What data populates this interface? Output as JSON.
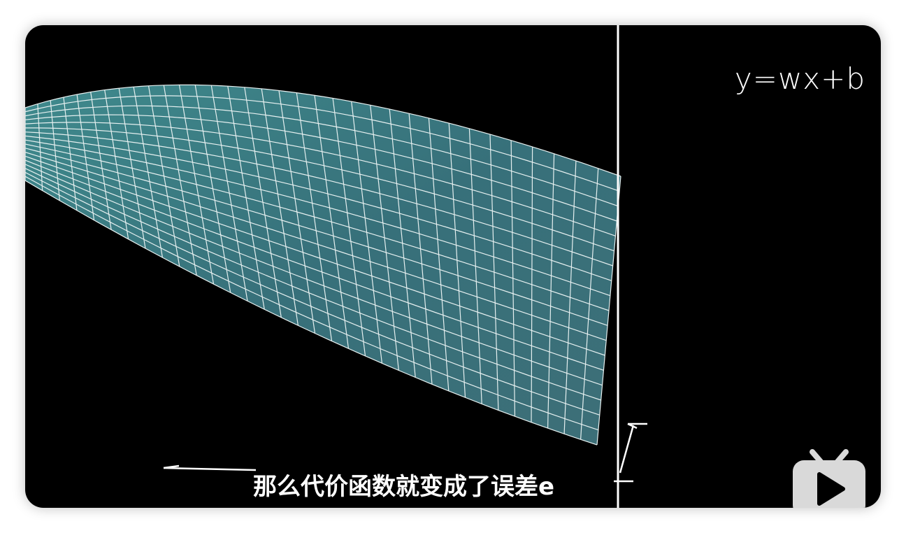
{
  "video": {
    "formula": "y=wx+b",
    "subtitle": "那么代价函数就变成了误差e"
  },
  "icons": {
    "logo": "bilibili-tv-icon"
  },
  "colors": {
    "background": "#000000",
    "surface": "#3f7d80",
    "grid": "#e6f0f0",
    "axis": "#ffffff",
    "logo": "#d9d9d9"
  }
}
